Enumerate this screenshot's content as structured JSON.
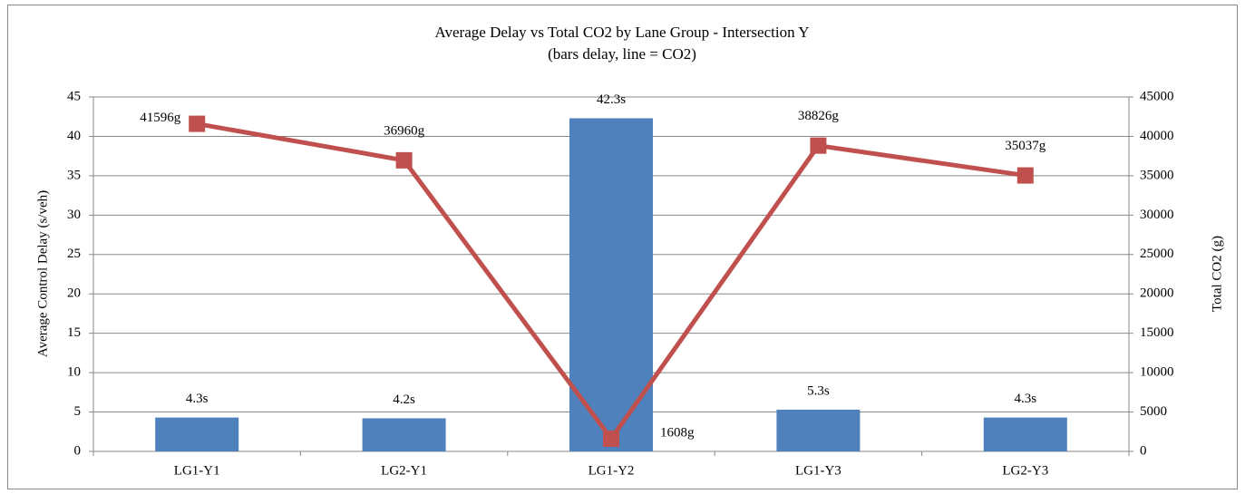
{
  "chart_data": {
    "type": "combo",
    "title": "Average Delay vs Total CO2 by Lane Group - Intersection Y",
    "subtitle": "(bars delay, line = CO2)",
    "y_label": "Average Control Delay (s/veh)",
    "y2_label": "Total CO2  (g)",
    "categories": [
      "LG1-Y1",
      "LG2-Y1",
      "LG1-Y2",
      "LG1-Y3",
      "LG2-Y3"
    ],
    "series": [
      {
        "type": "bar",
        "color": "#4f81bd",
        "values": [
          4.3,
          4.2,
          42.3,
          5.3,
          4.3
        ],
        "value_labels": [
          "4.3s",
          "4.2s",
          "42.3s",
          "5.3s",
          "4.3s"
        ]
      },
      {
        "type": "line",
        "axis": "y2",
        "color": "#c0504d",
        "values": [
          41596,
          36960,
          1608,
          38826,
          35037
        ],
        "value_labels": [
          "41596g",
          "36960g",
          "1608g",
          "38826g",
          "35037g"
        ]
      }
    ],
    "ylim": [
      0,
      45
    ],
    "yticks": [
      0,
      5,
      10,
      15,
      20,
      25,
      30,
      35,
      40,
      45
    ],
    "y2lim": [
      0,
      45000
    ],
    "y2ticks": [
      0,
      5000,
      10000,
      15000,
      20000,
      25000,
      30000,
      35000,
      40000,
      45000
    ],
    "grid": true
  }
}
